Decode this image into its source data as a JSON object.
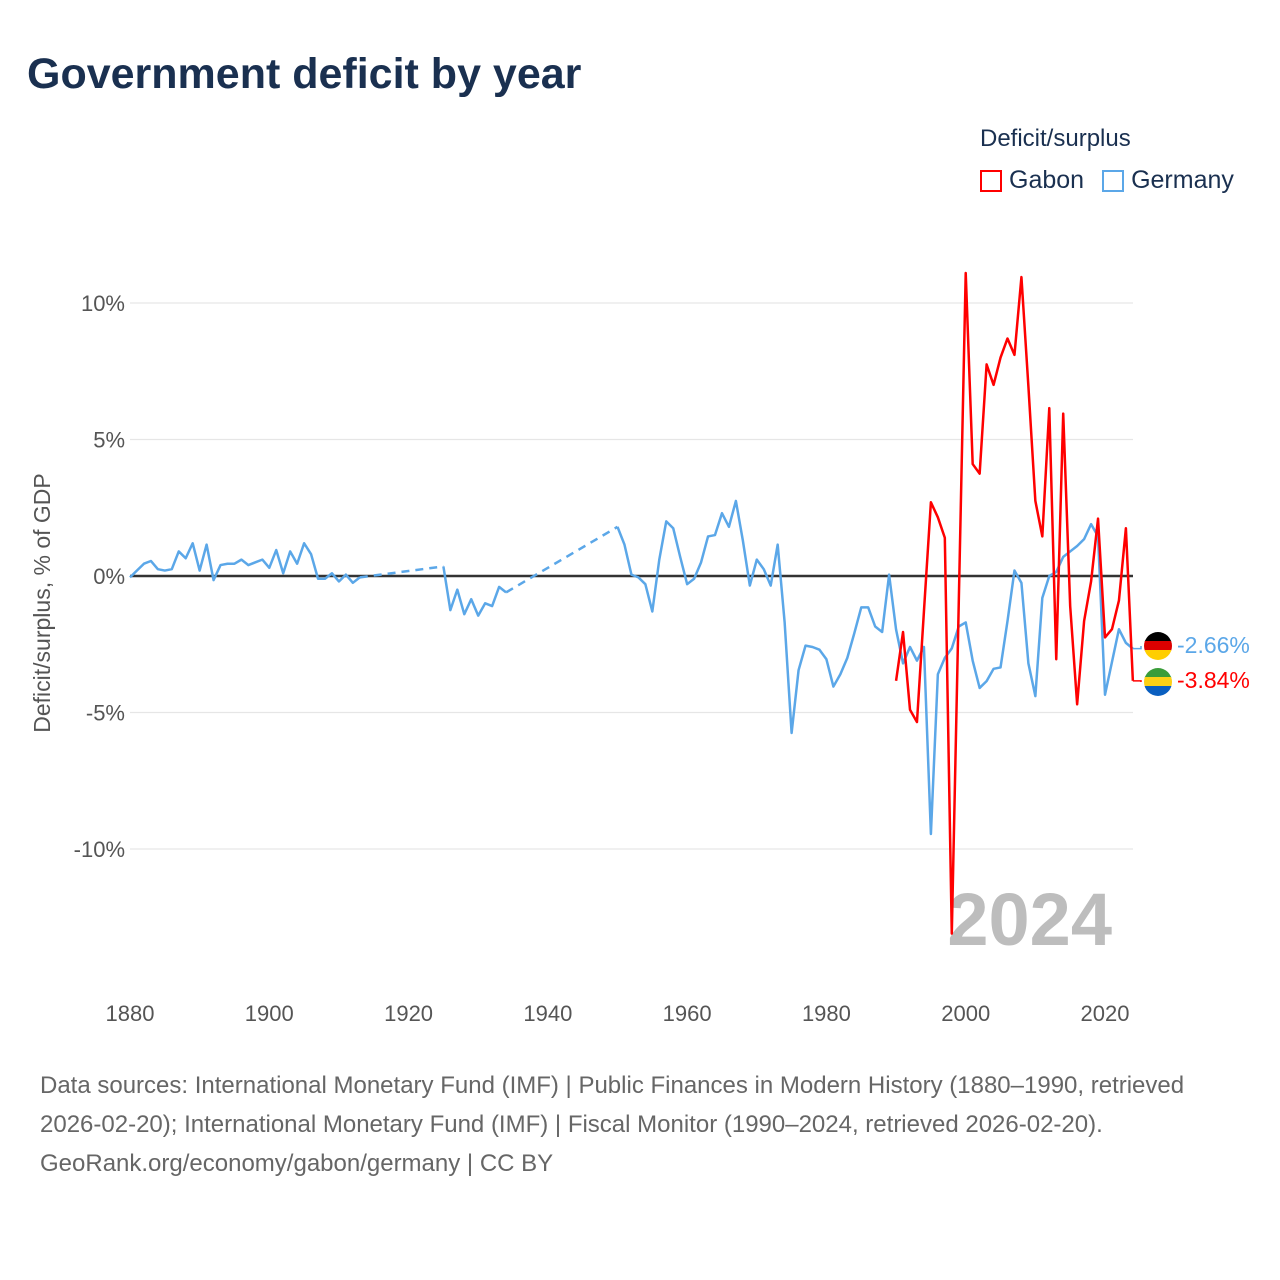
{
  "header": {
    "title": "Government deficit by year"
  },
  "legend": {
    "title": "Deficit/surplus",
    "items": [
      "Gabon",
      "Germany"
    ]
  },
  "colors": {
    "gabon": "#ff0000",
    "germany": "#5ba7e8",
    "zero_line": "#333333",
    "grid": "#e6e6e6"
  },
  "chart_data": {
    "type": "line",
    "title": "Government deficit by year",
    "xlabel": "",
    "ylabel": "Deficit/surplus, % of GDP",
    "xlim": [
      1880,
      2024
    ],
    "ylim": [
      -13.1,
      11.1
    ],
    "x_ticks": [
      1880,
      1900,
      1920,
      1940,
      1960,
      1980,
      2000,
      2020
    ],
    "x_tick_labels": [
      "1880",
      "1900",
      "1920",
      "1940",
      "1960",
      "1980",
      "2000",
      "2020"
    ],
    "y_ticks": [
      10,
      5,
      0,
      -5,
      -10
    ],
    "y_tick_labels": [
      "10%",
      "5%",
      "0%",
      "-5%",
      "-10%"
    ],
    "grid": true,
    "legend_position": "top-right",
    "current_year_label": "2024",
    "series": [
      {
        "name": "Gabon",
        "color": "#ff0000",
        "start_year": 1990,
        "values": [
          -3.84,
          -2.05,
          -4.9,
          -5.35,
          -1.3,
          2.7,
          2.15,
          1.4,
          -13.1,
          -1.0,
          11.1,
          4.1,
          3.75,
          7.75,
          7.0,
          8.0,
          8.7,
          8.1,
          10.95,
          6.95,
          2.75,
          1.45,
          6.15,
          -3.05,
          5.95,
          -1.1,
          -4.7,
          -1.65,
          -0.2,
          2.1,
          -2.25,
          -1.95,
          -0.9,
          1.75,
          -3.84
        ],
        "end_label": "-3.84%"
      },
      {
        "name": "Germany",
        "color": "#5ba7e8",
        "start_year": 1880,
        "values": [
          -0.05,
          0.2,
          0.45,
          0.55,
          0.25,
          0.2,
          0.25,
          0.9,
          0.65,
          1.2,
          0.2,
          1.15,
          -0.15,
          0.4,
          0.45,
          0.45,
          0.6,
          0.4,
          0.5,
          0.6,
          0.3,
          0.95,
          0.1,
          0.9,
          0.45,
          1.2,
          0.8,
          -0.1,
          -0.1,
          0.1,
          -0.2,
          0.05,
          -0.25,
          -0.05,
          null,
          null,
          null,
          null,
          null,
          null,
          null,
          null,
          null,
          null,
          null,
          0.35,
          -1.25,
          -0.5,
          -1.4,
          -0.85,
          -1.45,
          -1.0,
          -1.1,
          -0.4,
          -0.6,
          null,
          null,
          null,
          null,
          null,
          null,
          null,
          null,
          null,
          null,
          null,
          null,
          null,
          null,
          null,
          1.8,
          1.15,
          0.05,
          -0.05,
          -0.3,
          -1.3,
          0.6,
          2.0,
          1.75,
          0.7,
          -0.3,
          -0.1,
          0.5,
          1.45,
          1.5,
          2.3,
          1.8,
          2.75,
          1.3,
          -0.35,
          0.6,
          0.25,
          -0.35,
          1.15,
          -1.7,
          -5.75,
          -3.45,
          -2.55,
          -2.6,
          -2.7,
          -3.05,
          -4.05,
          -3.6,
          -3.0,
          -2.1,
          -1.15,
          -1.15,
          -1.85,
          -2.05,
          0.05,
          -1.96,
          -3.2,
          -2.6,
          -3.1,
          -2.6,
          -9.45,
          -3.6,
          -3.0,
          -2.65,
          -1.85,
          -1.7,
          -3.1,
          -4.1,
          -3.85,
          -3.4,
          -3.35,
          -1.65,
          0.2,
          -0.25,
          -3.2,
          -4.4,
          -0.8,
          0.0,
          0.15,
          0.7,
          0.9,
          1.1,
          1.35,
          1.9,
          1.45,
          -4.35,
          -3.15,
          -1.95,
          -2.45,
          -2.66
        ],
        "end_label": "-2.66%"
      }
    ]
  },
  "footer": {
    "sources": "Data sources: International Monetary Fund (IMF) | Public Finances in Modern History (1880–1990, retrieved 2026-02-20); International Monetary Fund (IMF) | Fiscal Monitor (1990–2024, retrieved 2026-02-20).",
    "attribution": "GeoRank.org/economy/gabon/germany | CC BY"
  }
}
